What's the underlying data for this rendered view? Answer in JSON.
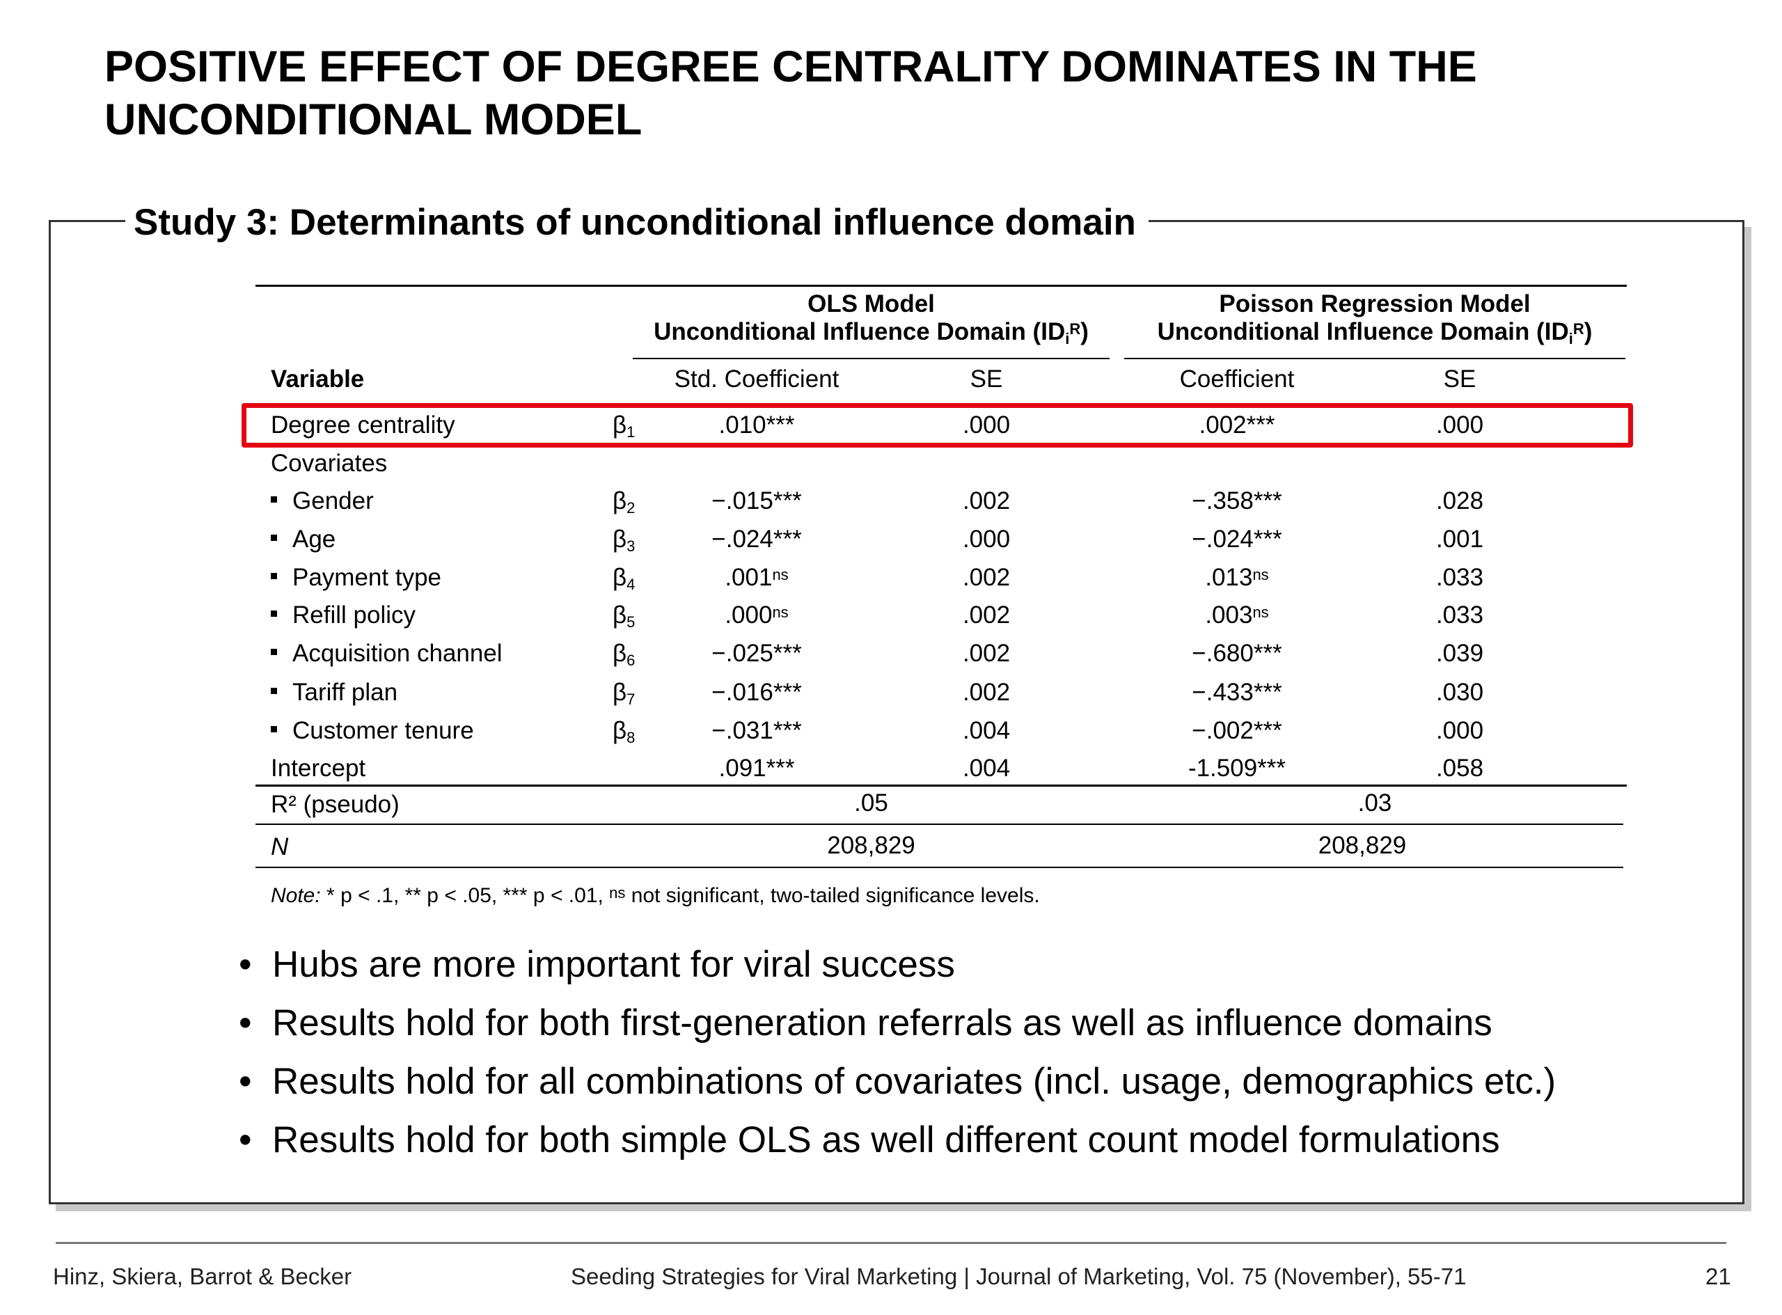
{
  "slide": {
    "title": "POSITIVE EFFECT OF DEGREE CENTRALITY DOMINATES IN THE UNCONDITIONAL MODEL",
    "panel_title": "Study 3: Determinants of unconditional influence domain"
  },
  "table": {
    "ols_header_line1": "OLS Model",
    "ols_header_line2": "Unconditional Influence Domain (ID",
    "poisson_header_line1": "Poisson Regression Model",
    "poisson_header_line2": "Unconditional Influence Domain (ID",
    "id_subscript": "i",
    "id_superscript": "R",
    "id_close": ")",
    "col_variable": "Variable",
    "col_std_coef": "Std. Coefficient",
    "col_se1": "SE",
    "col_coef": "Coefficient",
    "col_se2": "SE",
    "rows": [
      {
        "variable": "Degree centrality",
        "beta": "β",
        "beta_sub": "1",
        "ols_coef": ".010***",
        "ols_sig": "",
        "ols_se": ".000",
        "p_coef": ".002***",
        "p_sig": "",
        "p_se": ".000",
        "bullet": false
      },
      {
        "variable": "Covariates",
        "beta": "",
        "beta_sub": "",
        "ols_coef": "",
        "ols_sig": "",
        "ols_se": "",
        "p_coef": "",
        "p_sig": "",
        "p_se": "",
        "bullet": false
      },
      {
        "variable": "Gender",
        "beta": "β",
        "beta_sub": "2",
        "ols_coef": "−.015***",
        "ols_sig": "",
        "ols_se": ".002",
        "p_coef": "−.358***",
        "p_sig": "",
        "p_se": ".028",
        "bullet": true
      },
      {
        "variable": "Age",
        "beta": "β",
        "beta_sub": "3",
        "ols_coef": "−.024***",
        "ols_sig": "",
        "ols_se": ".000",
        "p_coef": "−.024***",
        "p_sig": "",
        "p_se": ".001",
        "bullet": true
      },
      {
        "variable": "Payment type",
        "beta": "β",
        "beta_sub": "4",
        "ols_coef": ".001",
        "ols_sig": "ns",
        "ols_se": ".002",
        "p_coef": ".013",
        "p_sig": "ns",
        "p_se": ".033",
        "bullet": true
      },
      {
        "variable": "Refill policy",
        "beta": "β",
        "beta_sub": "5",
        "ols_coef": ".000",
        "ols_sig": "ns",
        "ols_se": ".002",
        "p_coef": ".003",
        "p_sig": "ns",
        "p_se": ".033",
        "bullet": true
      },
      {
        "variable": "Acquisition channel",
        "beta": "β",
        "beta_sub": "6",
        "ols_coef": "−.025***",
        "ols_sig": "",
        "ols_se": ".002",
        "p_coef": "−.680***",
        "p_sig": "",
        "p_se": ".039",
        "bullet": true
      },
      {
        "variable": "Tariff plan",
        "beta": "β",
        "beta_sub": "7",
        "ols_coef": "−.016***",
        "ols_sig": "",
        "ols_se": ".002",
        "p_coef": "−.433***",
        "p_sig": "",
        "p_se": ".030",
        "bullet": true
      },
      {
        "variable": "Customer tenure",
        "beta": "β",
        "beta_sub": "8",
        "ols_coef": "−.031***",
        "ols_sig": "",
        "ols_se": ".004",
        "p_coef": "−.002***",
        "p_sig": "",
        "p_se": ".000",
        "bullet": true
      },
      {
        "variable": "Intercept",
        "beta": "",
        "beta_sub": "",
        "ols_coef": ".091***",
        "ols_sig": "",
        "ols_se": ".004",
        "p_coef": "-1.509***",
        "p_sig": "",
        "p_se": ".058",
        "bullet": false
      }
    ],
    "r2_label": "R² (pseudo)",
    "r2_ols": ".05",
    "r2_poisson": ".03",
    "n_label": "N",
    "n_ols": "208,829",
    "n_poisson": "208,829",
    "note_prefix": "Note:",
    "note_text": " * p < .1, ** p < .05,  *** p < .01,  ",
    "note_ns": "ns",
    "note_suffix": " not significant, two-tailed significance levels."
  },
  "bullets": [
    "Hubs are more important for viral success",
    "Results hold for both first-generation referrals as well as influence domains",
    "Results hold for all combinations of covariates (incl. usage, demographics etc.)",
    "Results hold for both simple OLS as well different count model formulations"
  ],
  "footer": {
    "authors": "Hinz, Skiera, Barrot & Becker",
    "citation": "Seeding Strategies for Viral Marketing  |  Journal of Marketing, Vol. 75 (November), 55-71",
    "page_number": "21"
  }
}
